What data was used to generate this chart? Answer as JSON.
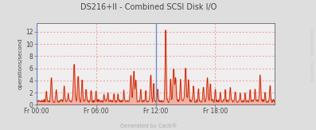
{
  "title": "DS216+II - Combined SCSI Disk I/O",
  "ylabel": "operations/second",
  "footer": "Generated by Cacti®",
  "right_label": "RRDTOOL / TOBIOETIKER",
  "bg_color": "#dedede",
  "plot_bg_color": "#f0eeee",
  "grid_color": "#f08080",
  "line_color": "#cc2200",
  "fill_color": "#f0a898",
  "blue_bar_color": "#6688cc",
  "axis_color": "#666666",
  "title_color": "#444444",
  "ylabel_color": "#444444",
  "tick_color": "#444444",
  "footer_color": "#aaaaaa",
  "right_label_color": "#cccccc",
  "x_ticks": [
    0,
    6,
    12,
    18
  ],
  "x_tick_labels": [
    "Fr 00:00",
    "Fr 06:00",
    "Fr 12:00",
    "Fr 18:00"
  ],
  "y_ticks": [
    0,
    2,
    4,
    6,
    8,
    10,
    12
  ],
  "ylim": [
    0,
    13.5
  ],
  "xlim_hours": [
    0,
    24
  ],
  "seed": 7
}
